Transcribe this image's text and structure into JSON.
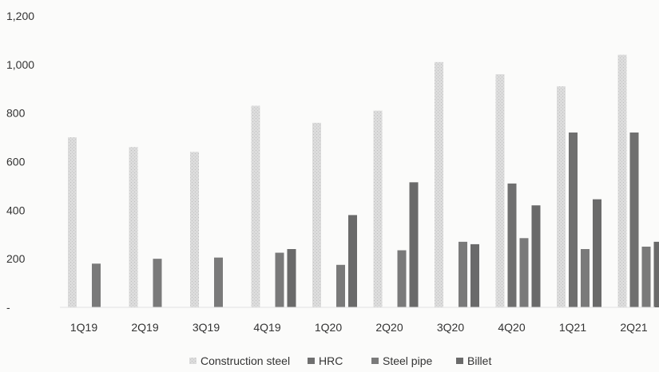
{
  "chart_data": {
    "type": "bar",
    "categories": [
      "1Q19",
      "2Q19",
      "3Q19",
      "4Q19",
      "1Q20",
      "2Q20",
      "3Q20",
      "4Q20",
      "1Q21",
      "2Q21"
    ],
    "series": [
      {
        "name": "Construction steel",
        "values": [
          700,
          660,
          640,
          830,
          760,
          810,
          1010,
          960,
          910,
          1040
        ],
        "color": "#d8d8d8"
      },
      {
        "name": "HRC",
        "values": [
          0,
          0,
          0,
          0,
          0,
          0,
          0,
          510,
          720,
          720
        ],
        "color": "#6f6f6f"
      },
      {
        "name": "Steel pipe",
        "values": [
          180,
          200,
          205,
          225,
          175,
          235,
          270,
          285,
          240,
          250
        ],
        "color": "#7a7a7a"
      },
      {
        "name": "Billet",
        "values": [
          0,
          0,
          0,
          240,
          380,
          515,
          260,
          420,
          445,
          270
        ],
        "color": "#6a6a6a"
      }
    ],
    "yticks": [
      "-",
      "200",
      "400",
      "600",
      "800",
      "1,000",
      "1,200"
    ],
    "ylim": [
      0,
      1200
    ],
    "legend_position": "bottom",
    "grid": false
  }
}
